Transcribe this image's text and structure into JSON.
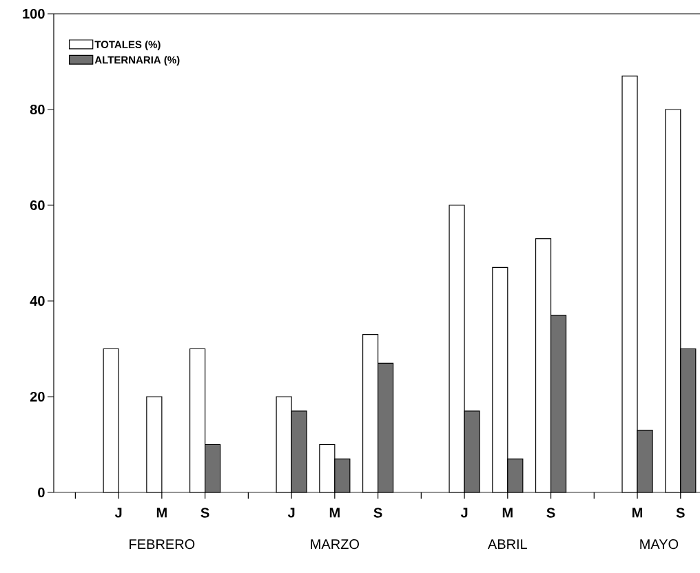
{
  "chart_data": {
    "type": "bar",
    "categories": [
      null,
      "J",
      "M",
      "S",
      null,
      "J",
      "M",
      "S",
      null,
      "J",
      "M",
      "S",
      null,
      "M",
      "S"
    ],
    "series": [
      {
        "name": "TOTALES (%)",
        "color": "#ffffff",
        "values": [
          null,
          30,
          20,
          30,
          null,
          20,
          10,
          33,
          null,
          60,
          47,
          53,
          null,
          87,
          80
        ]
      },
      {
        "name": "ALTERNARIA (%)",
        "color": "#707070",
        "values": [
          null,
          null,
          null,
          10,
          null,
          17,
          7,
          27,
          null,
          17,
          7,
          37,
          null,
          13,
          30
        ]
      }
    ],
    "ylim": [
      0,
      100
    ],
    "yticks": [
      0,
      20,
      40,
      60,
      80,
      100
    ],
    "annotations": [
      "FEBRERO",
      "MARZO",
      "ABRIL",
      "MAYO"
    ],
    "legend": "top left"
  }
}
